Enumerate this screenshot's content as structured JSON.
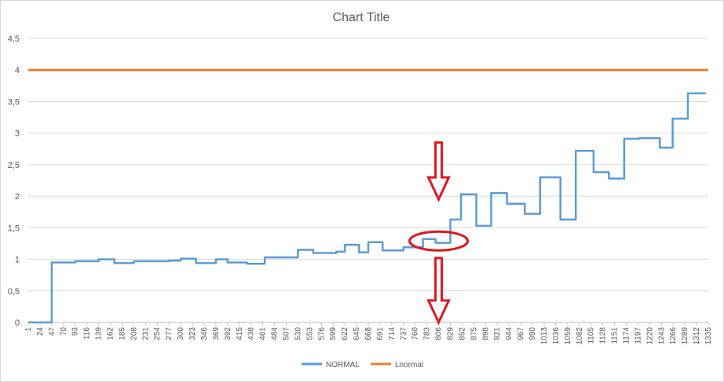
{
  "chart_data": {
    "type": "line",
    "title": "Chart Title",
    "xlabel": "",
    "ylabel": "",
    "ylim": [
      0,
      4.5
    ],
    "yticks": [
      "0",
      "0,5",
      "1",
      "1,5",
      "2",
      "2,5",
      "3",
      "3,5",
      "4",
      "4,5"
    ],
    "xlim": [
      1,
      1335
    ],
    "xticks": [
      "1",
      "24",
      "47",
      "70",
      "93",
      "116",
      "139",
      "162",
      "185",
      "208",
      "231",
      "254",
      "277",
      "300",
      "323",
      "346",
      "369",
      "392",
      "415",
      "438",
      "461",
      "484",
      "507",
      "530",
      "553",
      "576",
      "599",
      "622",
      "645",
      "668",
      "691",
      "714",
      "737",
      "760",
      "783",
      "806",
      "829",
      "852",
      "875",
      "898",
      "921",
      "944",
      "967",
      "990",
      "1013",
      "1036",
      "1059",
      "1082",
      "1105",
      "1128",
      "1151",
      "1174",
      "1197",
      "1220",
      "1243",
      "1266",
      "1289",
      "1312",
      "1335"
    ],
    "grid": true,
    "legend_position": "bottom",
    "series": [
      {
        "name": "NORMAL",
        "color": "#5B9BD5",
        "x": [
          1,
          47,
          47,
          93,
          93,
          139,
          139,
          170,
          170,
          208,
          208,
          277,
          277,
          300,
          300,
          330,
          330,
          369,
          369,
          392,
          392,
          430,
          430,
          465,
          465,
          530,
          530,
          560,
          560,
          605,
          605,
          622,
          622,
          650,
          650,
          668,
          668,
          696,
          696,
          737,
          737,
          775,
          775,
          800,
          800,
          829,
          829,
          850,
          850,
          880,
          880,
          909,
          909,
          940,
          940,
          975,
          975,
          1005,
          1005,
          1045,
          1045,
          1075,
          1075,
          1110,
          1110,
          1140,
          1140,
          1170,
          1170,
          1200,
          1200,
          1240,
          1240,
          1265,
          1265,
          1295,
          1295,
          1330
        ],
        "y": [
          0,
          0,
          0.95,
          0.95,
          0.97,
          0.97,
          1.0,
          1.0,
          0.94,
          0.94,
          0.97,
          0.97,
          0.98,
          0.98,
          1.01,
          1.01,
          0.94,
          0.94,
          1.0,
          1.0,
          0.95,
          0.95,
          0.93,
          0.93,
          1.03,
          1.03,
          1.15,
          1.15,
          1.1,
          1.1,
          1.12,
          1.12,
          1.23,
          1.23,
          1.11,
          1.11,
          1.27,
          1.27,
          1.14,
          1.14,
          1.19,
          1.19,
          1.32,
          1.32,
          1.26,
          1.26,
          1.63,
          1.63,
          2.03,
          2.03,
          1.53,
          1.53,
          2.05,
          2.05,
          1.88,
          1.88,
          1.72,
          1.72,
          2.3,
          2.3,
          1.63,
          1.63,
          2.72,
          2.72,
          2.38,
          2.38,
          2.28,
          2.28,
          2.91,
          2.91,
          2.92,
          2.92,
          2.77,
          2.77,
          3.23,
          3.23,
          3.63,
          3.63
        ]
      },
      {
        "name": "Lnormal",
        "color": "#ED7D31",
        "x": [
          1,
          1335
        ],
        "y": [
          4.0,
          4.0
        ]
      }
    ],
    "annotations": [
      {
        "type": "arrow-down",
        "color": "#E0161F",
        "x": 806,
        "y_from": 2.85,
        "y_to": 1.95
      },
      {
        "type": "ellipse",
        "color": "#E0161F",
        "x": 806,
        "y": 1.29
      },
      {
        "type": "arrow-down",
        "color": "#E0161F",
        "x": 806,
        "y_from": 1.02,
        "y_to": 0.0
      }
    ]
  }
}
